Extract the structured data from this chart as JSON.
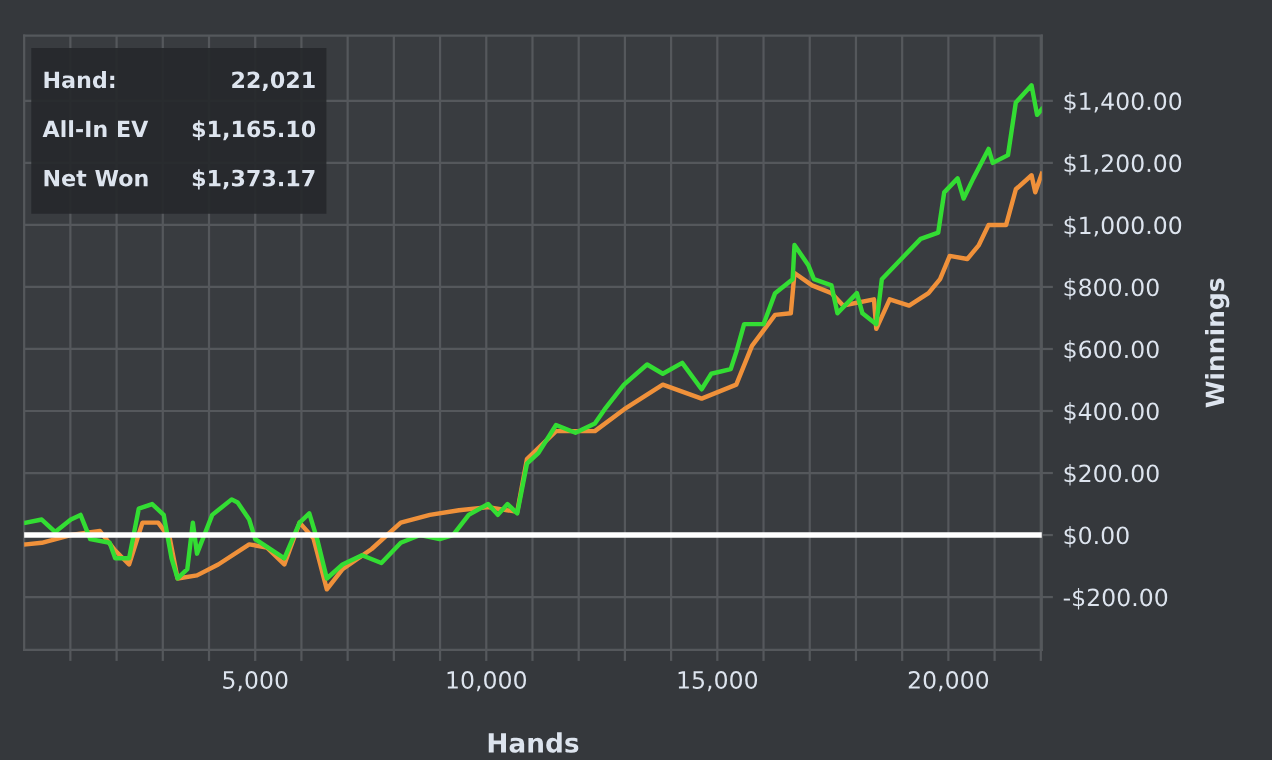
{
  "chart_data": {
    "type": "line",
    "xlabel": "Hands",
    "ylabel": "Winnings",
    "annotations": [
      "Hand:",
      "22,021",
      "All-In EV",
      "$1,165.10",
      "Net Won",
      "$1,373.17"
    ],
    "xlim": [
      0,
      22021
    ],
    "ylim": [
      -370,
      1610
    ],
    "xticks": [
      {
        "value": 1000,
        "label": null
      },
      {
        "value": 2000,
        "label": null
      },
      {
        "value": 3000,
        "label": null
      },
      {
        "value": 4000,
        "label": null
      },
      {
        "value": 5000,
        "label": "5,000"
      },
      {
        "value": 6000,
        "label": null
      },
      {
        "value": 7000,
        "label": null
      },
      {
        "value": 8000,
        "label": null
      },
      {
        "value": 9000,
        "label": null
      },
      {
        "value": 10000,
        "label": "10,000"
      },
      {
        "value": 11000,
        "label": null
      },
      {
        "value": 12000,
        "label": null
      },
      {
        "value": 13000,
        "label": null
      },
      {
        "value": 14000,
        "label": null
      },
      {
        "value": 15000,
        "label": "15,000"
      },
      {
        "value": 16000,
        "label": null
      },
      {
        "value": 17000,
        "label": null
      },
      {
        "value": 18000,
        "label": null
      },
      {
        "value": 19000,
        "label": null
      },
      {
        "value": 20000,
        "label": "20,000"
      },
      {
        "value": 21000,
        "label": null
      },
      {
        "value": 22000,
        "label": null
      }
    ],
    "yticks": [
      {
        "value": -200,
        "label": "-$200.00"
      },
      {
        "value": 0,
        "label": "$0.00"
      },
      {
        "value": 200,
        "label": "$200.00"
      },
      {
        "value": 400,
        "label": "$400.00"
      },
      {
        "value": 600,
        "label": "$600.00"
      },
      {
        "value": 800,
        "label": "$800.00"
      },
      {
        "value": 1000,
        "label": "$1,000.00"
      },
      {
        "value": 1200,
        "label": "$1,200.00"
      },
      {
        "value": 1400,
        "label": "$1,400.00"
      }
    ],
    "grid": true,
    "legend": false,
    "ref_lines": [
      {
        "axis": "y",
        "value": 0,
        "color": "#ffffff"
      }
    ],
    "series": [
      {
        "color": "#f0913a",
        "x": [
          40,
          380,
          1010,
          1640,
          1970,
          2270,
          2560,
          2900,
          3150,
          3320,
          3740,
          4200,
          4870,
          5250,
          5630,
          5960,
          6260,
          6550,
          6890,
          7520,
          8150,
          8780,
          9410,
          10040,
          10670,
          10880,
          11510,
          12350,
          12980,
          13820,
          14660,
          15410,
          15750,
          16250,
          16590,
          16670,
          17050,
          17470,
          17720,
          18390,
          18440,
          18730,
          19150,
          19570,
          19820,
          20030,
          20410,
          20660,
          20870,
          21250,
          21460,
          21800,
          21880,
          22021
        ],
        "values": [
          -30,
          -25,
          0,
          13,
          -50,
          -95,
          40,
          40,
          -10,
          -140,
          -130,
          -95,
          -30,
          -40,
          -95,
          40,
          -10,
          -175,
          -110,
          -45,
          40,
          65,
          80,
          90,
          75,
          245,
          335,
          335,
          405,
          485,
          440,
          485,
          610,
          710,
          715,
          845,
          805,
          780,
          740,
          760,
          665,
          760,
          740,
          780,
          825,
          900,
          890,
          935,
          1000,
          1000,
          1115,
          1160,
          1105,
          1165
        ]
      },
      {
        "color": "#33dd33",
        "x": [
          40,
          380,
          670,
          1010,
          1220,
          1430,
          1850,
          1970,
          2270,
          2480,
          2770,
          3020,
          3190,
          3320,
          3530,
          3650,
          3740,
          4070,
          4490,
          4620,
          4870,
          5000,
          5630,
          5960,
          6170,
          6340,
          6550,
          6890,
          7310,
          7730,
          8150,
          8570,
          8990,
          9280,
          9620,
          10040,
          10250,
          10460,
          10670,
          10880,
          11130,
          11510,
          11930,
          12350,
          12560,
          12980,
          13480,
          13820,
          14240,
          14660,
          14870,
          15290,
          15410,
          15580,
          16000,
          16250,
          16630,
          16670,
          16970,
          17090,
          17470,
          17600,
          18020,
          18140,
          18440,
          18560,
          18980,
          19400,
          19780,
          19910,
          20200,
          20330,
          20540,
          20870,
          20960,
          21290,
          21460,
          21800,
          21920,
          22021
        ],
        "values": [
          40,
          50,
          10,
          50,
          65,
          -13,
          -25,
          -75,
          -75,
          85,
          100,
          65,
          -75,
          -140,
          -110,
          40,
          -60,
          65,
          115,
          105,
          50,
          -13,
          -75,
          40,
          70,
          -13,
          -140,
          -95,
          -65,
          -90,
          -25,
          0,
          -13,
          0,
          65,
          100,
          65,
          100,
          70,
          230,
          265,
          355,
          330,
          360,
          405,
          485,
          550,
          520,
          555,
          470,
          520,
          535,
          590,
          680,
          680,
          780,
          825,
          935,
          870,
          825,
          805,
          715,
          780,
          715,
          680,
          825,
          890,
          955,
          975,
          1105,
          1150,
          1085,
          1150,
          1245,
          1200,
          1225,
          1395,
          1450,
          1355,
          1373
        ]
      }
    ]
  }
}
